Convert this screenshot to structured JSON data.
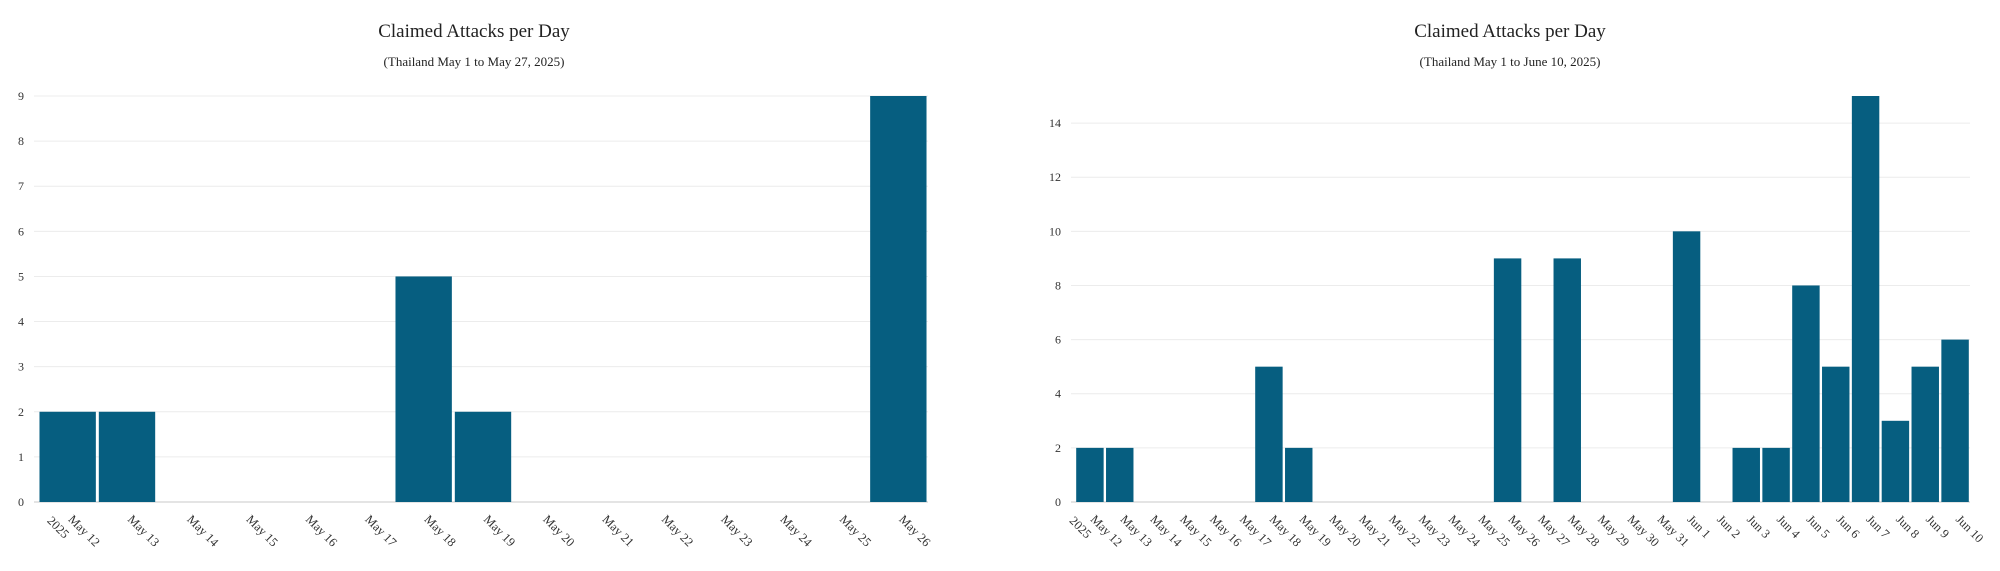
{
  "chart_data": [
    {
      "type": "bar",
      "title": "Claimed Attacks per Day",
      "subtitle": "(Thailand May 1 to May 27, 2025)",
      "categories": [
        "May 12",
        "May 13",
        "May 14",
        "May 15",
        "May 16",
        "May 17",
        "May 18",
        "May 19",
        "May 20",
        "May 21",
        "May 22",
        "May 23",
        "May 24",
        "May 25",
        "May 26"
      ],
      "values": [
        2,
        2,
        0,
        0,
        0,
        0,
        5,
        2,
        0,
        0,
        0,
        0,
        0,
        0,
        9
      ],
      "first_tick_year": "2025",
      "xlabel": "",
      "ylabel": "",
      "ylim": [
        0,
        9
      ],
      "yticks": [
        0,
        1,
        2,
        3,
        4,
        5,
        6,
        7,
        8,
        9
      ],
      "grid": true,
      "bar_color": "#065e80"
    },
    {
      "type": "bar",
      "title": "Claimed Attacks per Day",
      "subtitle": "(Thailand May 1 to June 10, 2025)",
      "categories": [
        "May 12",
        "May 13",
        "May 14",
        "May 15",
        "May 16",
        "May 17",
        "May 18",
        "May 19",
        "May 20",
        "May 21",
        "May 22",
        "May 23",
        "May 24",
        "May 25",
        "May 26",
        "May 27",
        "May 28",
        "May 29",
        "May 30",
        "May 31",
        "Jun 1",
        "Jun 2",
        "Jun 3",
        "Jun 4",
        "Jun 5",
        "Jun 6",
        "Jun 7",
        "Jun 8",
        "Jun 9",
        "Jun 10"
      ],
      "values": [
        2,
        2,
        0,
        0,
        0,
        0,
        5,
        2,
        0,
        0,
        0,
        0,
        0,
        0,
        9,
        0,
        9,
        0,
        0,
        0,
        10,
        0,
        2,
        2,
        8,
        5,
        15,
        3,
        5,
        6
      ],
      "first_tick_year": "2025",
      "xlabel": "",
      "ylabel": "",
      "ylim": [
        0,
        15
      ],
      "yticks": [
        0,
        2,
        4,
        6,
        8,
        10,
        12,
        14
      ],
      "grid": true,
      "bar_color": "#065e80"
    }
  ]
}
